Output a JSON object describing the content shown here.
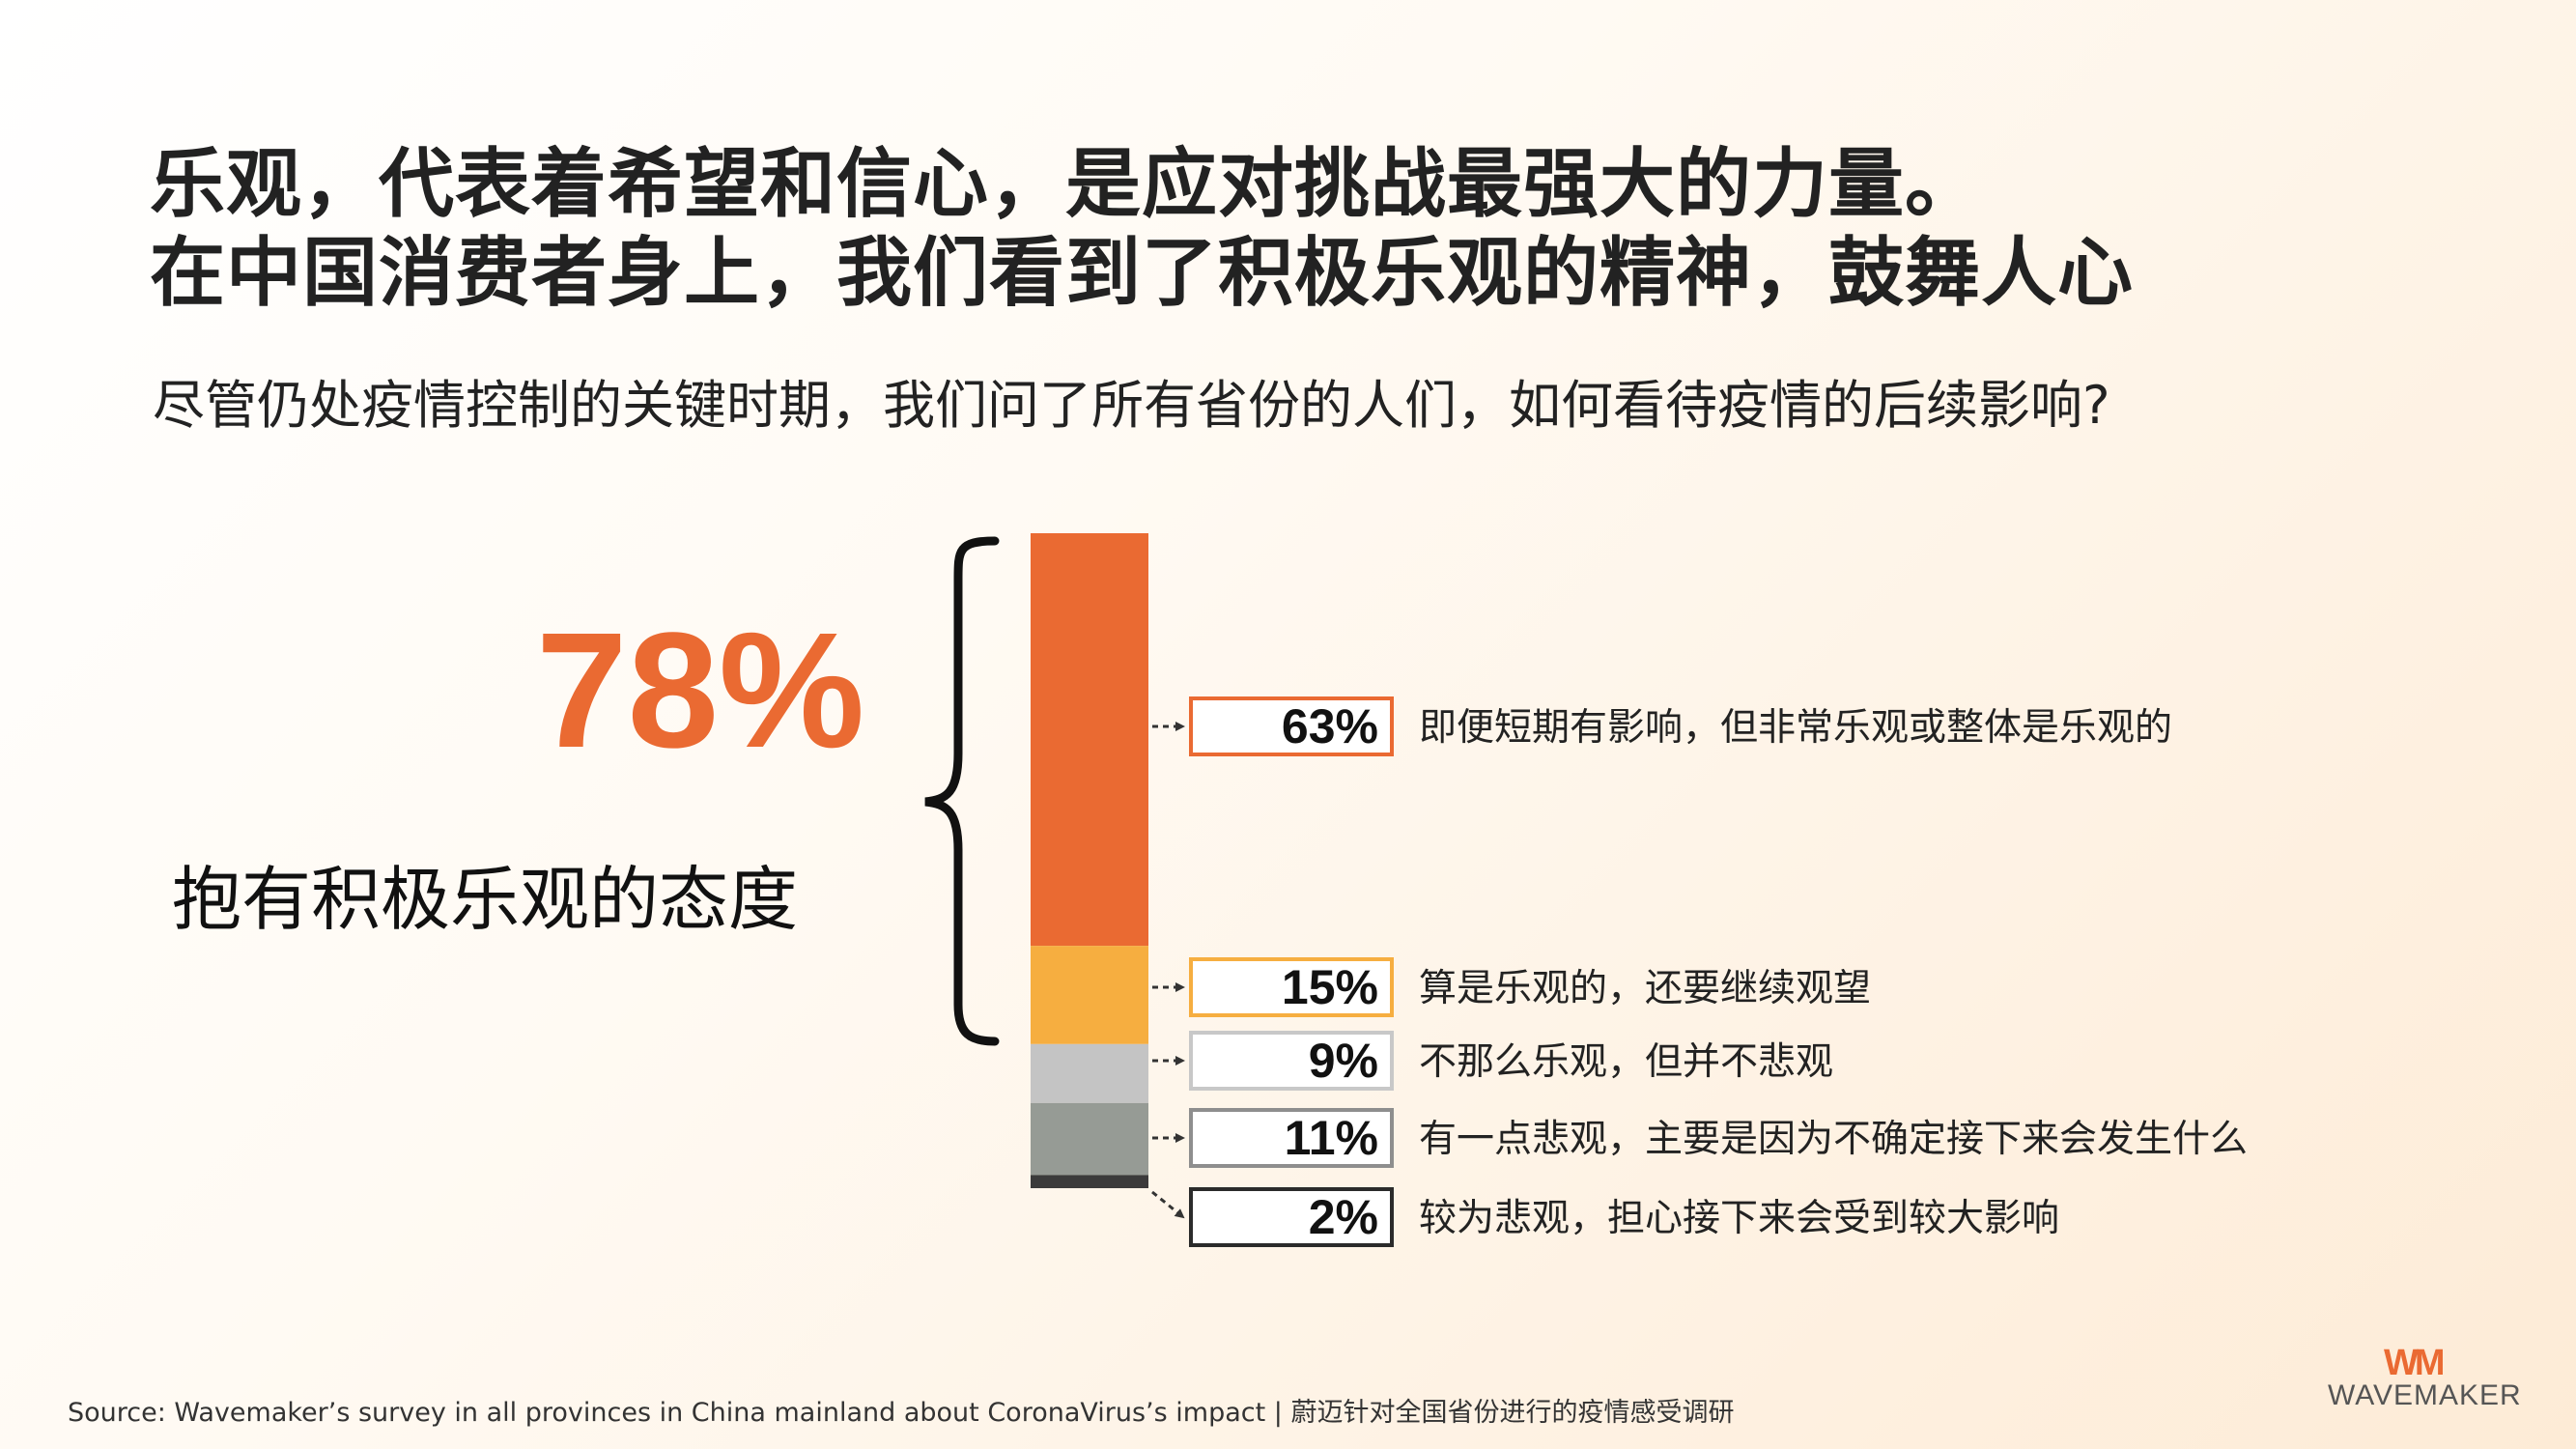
{
  "title_line1": "乐观，代表着希望和信心，是应对挑战最强大的力量。",
  "title_line2": "在中国消费者身上，我们看到了积极乐观的精神，鼓舞人心",
  "subtitle": "尽管仍处疫情控制的关键时期，我们问了所有省份的人们，如何看待疫情的后续影响?",
  "highlight": {
    "value": "78%",
    "label": "抱有积极乐观的态度"
  },
  "chart_data": {
    "type": "bar",
    "stacked": true,
    "categories": [
      "即便短期有影响，但非常乐观或整体是乐观的",
      "算是乐观的，还要继续观望",
      "不那么乐观，但并不悲观",
      "有一点悲观，主要是因为不确定接下来会发生什么",
      "较为悲观，担心接下来会受到较大影响"
    ],
    "values": [
      63,
      15,
      9,
      11,
      2
    ],
    "value_labels": [
      "63%",
      "15%",
      "9%",
      "11%",
      "2%"
    ],
    "colors": [
      "#ea6a32",
      "#f6ae40",
      "#c4c4c4",
      "#969b95",
      "#3b3b3b"
    ],
    "border_colors": [
      "#ea6a32",
      "#f6ae40",
      "#c8c8c8",
      "#8e8e8e",
      "#2b2b2b"
    ],
    "bracket_group_total": "78%"
  },
  "source": "Source: Wavemaker’s survey in all provinces in China mainland about CoronaVirus’s impact | 蔚迈针对全国省份进行的疫情感受调研",
  "logo": {
    "mark": "WM",
    "text": "WAVEMAKER"
  }
}
